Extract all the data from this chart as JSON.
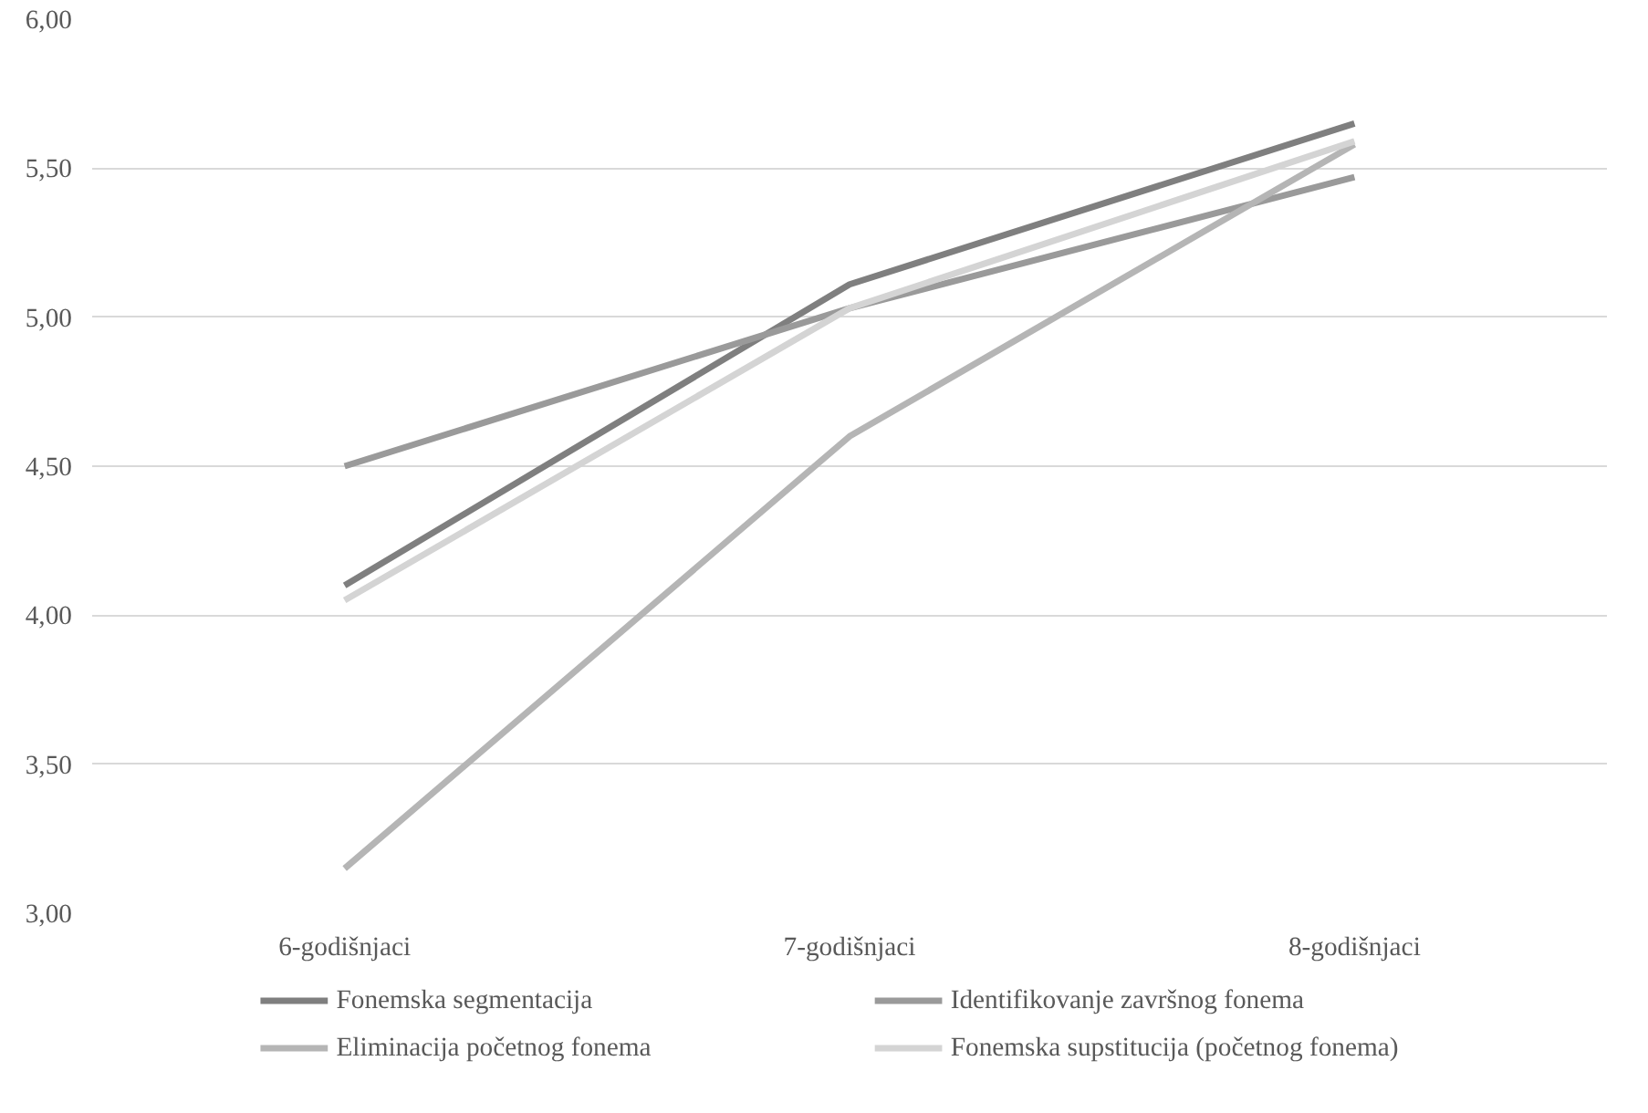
{
  "chart_data": {
    "type": "line",
    "categories": [
      "6-godišnjaci",
      "7-godišnjaci",
      "8-godišnjaci"
    ],
    "series": [
      {
        "name": "Fonemska segmentacija",
        "color": "#7f7f7f",
        "values": [
          4.1,
          5.11,
          5.65
        ]
      },
      {
        "name": "Identifikovanje završnog fonema",
        "color": "#9a9a9a",
        "values": [
          4.5,
          5.03,
          5.47
        ]
      },
      {
        "name": "Eliminacija početnog fonema",
        "color": "#b5b5b5",
        "values": [
          3.15,
          4.6,
          5.58
        ]
      },
      {
        "name": "Fonemska supstitucija (početnog fonema)",
        "color": "#d4d4d4",
        "values": [
          4.05,
          5.03,
          5.59
        ]
      }
    ],
    "ylim": [
      3,
      6
    ],
    "yticks": [
      {
        "value": 3,
        "label": "3,00"
      },
      {
        "value": 3.5,
        "label": "3,50"
      },
      {
        "value": 4,
        "label": "4,00"
      },
      {
        "value": 4.5,
        "label": "4,50"
      },
      {
        "value": 5,
        "label": "5,00"
      },
      {
        "value": 5.5,
        "label": "5,50"
      },
      {
        "value": 6,
        "label": "6,00"
      }
    ],
    "grid": "y",
    "legend": "bottom",
    "marker": "none",
    "line_style": "solid"
  }
}
